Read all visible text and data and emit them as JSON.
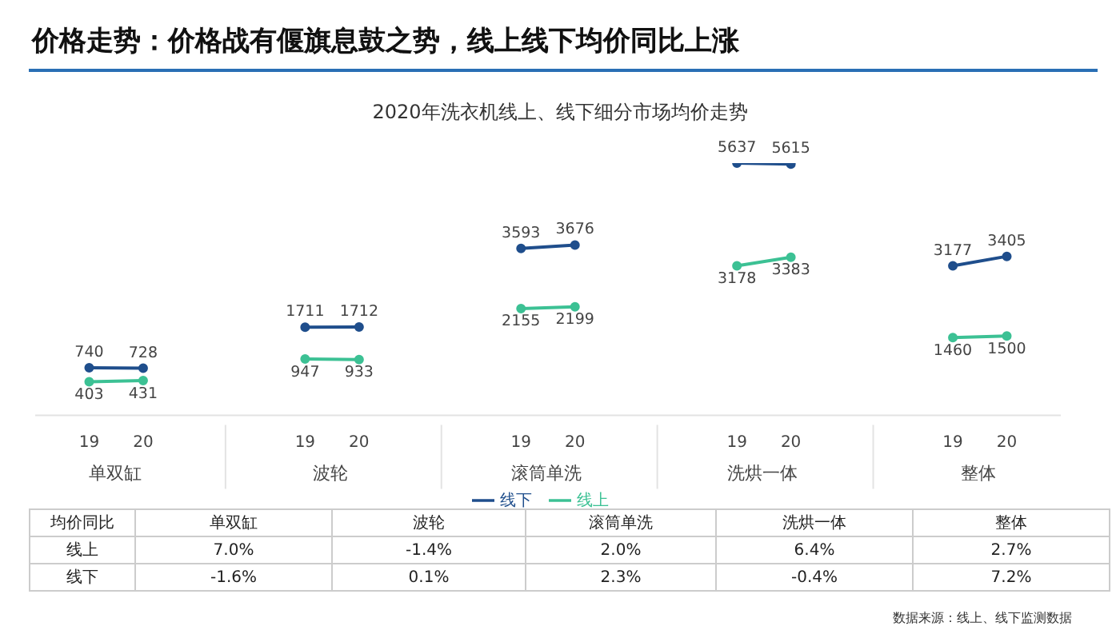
{
  "chart_data": {
    "type": "line",
    "title": "价格走势：价格战有偃旗息鼓之势，线上线下均价同比上涨",
    "subtitle": "2020年洗衣机线上、线下细分市场均价走势",
    "categories": [
      null,
      "19",
      "20",
      null,
      null,
      "19",
      "20",
      null,
      null,
      "19",
      "20",
      null,
      null,
      "19",
      "20",
      null,
      null,
      "19",
      "20",
      null
    ],
    "series": [
      {
        "name": "线下",
        "color": "#1f4e8c",
        "values": [
          null,
          740,
          728,
          null,
          null,
          1711,
          1712,
          null,
          null,
          3593,
          3676,
          null,
          null,
          5637,
          5615,
          null,
          null,
          3177,
          3405,
          null
        ]
      },
      {
        "name": "线上",
        "color": "#3cc194",
        "values": [
          null,
          403,
          431,
          null,
          null,
          947,
          933,
          null,
          null,
          2155,
          2199,
          null,
          null,
          3178,
          3383,
          null,
          null,
          1460,
          1500,
          null
        ]
      }
    ],
    "annotations": [
      "单双缸",
      "波轮",
      "滚筒单洗",
      "洗烘一体",
      "整体",
      "均价同比",
      "单双缸",
      "波轮",
      "滚筒单洗",
      "洗烘一体",
      "整体",
      "线上",
      "7.0%",
      "-1.4%",
      "2.0%",
      "6.4%",
      "2.7%",
      "线下",
      "-1.6%",
      "0.1%",
      "2.3%",
      "-0.4%",
      "7.2%",
      "数据来源：线上、线下监测数据"
    ],
    "data_labels": true,
    "marker": "circle",
    "line_style": "solid",
    "legend": "bottom",
    "grid": false,
    "tick_labels": "x"
  }
}
